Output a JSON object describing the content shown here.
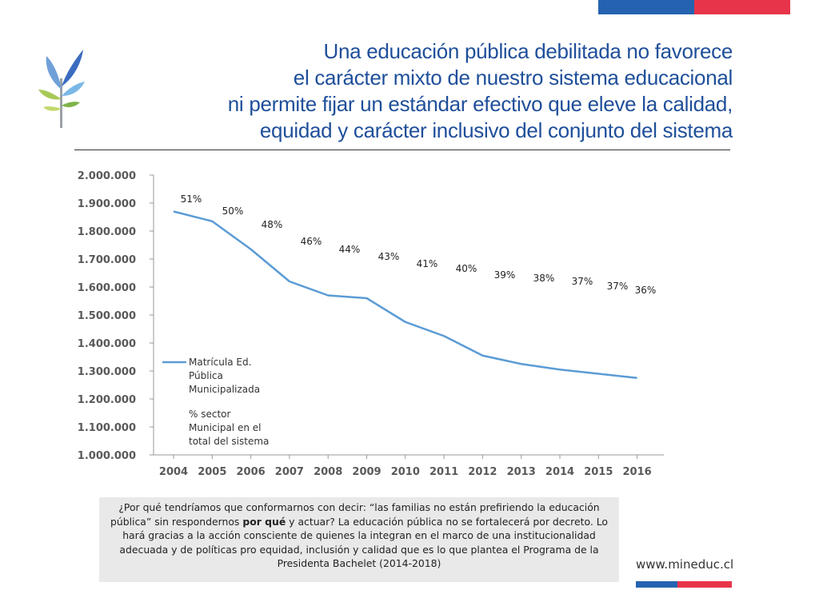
{
  "colors": {
    "blue": "#2563b1",
    "red": "#e8344a",
    "title": "#1f4f9a",
    "line": "#5b9bd5"
  },
  "header": {
    "title_lines": [
      "Una educación pública debilitada no favorece",
      "el carácter mixto de nuestro sistema educacional",
      "ni permite fijar un estándar efectivo que eleve la calidad,",
      "equidad y carácter inclusivo  del conjunto del sistema"
    ]
  },
  "chart_data": {
    "type": "line",
    "x": [
      "2004",
      "2005",
      "2006",
      "2007",
      "2008",
      "2009",
      "2010",
      "2011",
      "2012",
      "2013",
      "2014",
      "2015",
      "2016"
    ],
    "series": [
      {
        "name": "Matrícula Ed. Pública Municipalizada",
        "values": [
          1870000,
          1835000,
          1735000,
          1620000,
          1570000,
          1560000,
          1475000,
          1425000,
          1355000,
          1325000,
          1305000,
          1290000,
          1275000
        ]
      }
    ],
    "annotations": [
      "51%",
      "50%",
      "48%",
      "46%",
      "44%",
      "43%",
      "41%",
      "40%",
      "39%",
      "38%",
      "37%",
      "37%",
      "36%"
    ],
    "annotation_series_name": "% sector Municipal en el total del sistema",
    "ylim": [
      1000000,
      2000000
    ],
    "yticks": [
      "2.000.000",
      "1.900.000",
      "1.800.000",
      "1.700.000",
      "1.600.000",
      "1.500.000",
      "1.400.000",
      "1.300.000",
      "1.200.000",
      "1.100.000",
      "1.000.000"
    ],
    "legend": {
      "line_label": [
        "Matrícula Ed.",
        "Pública",
        "Municipalizada"
      ],
      "pct_label": [
        "% sector",
        "Municipal en el",
        "total del sistema"
      ]
    },
    "grid": false
  },
  "note": {
    "p1": "¿Por qué tendríamos que conformarnos con decir: “las familias no están prefiriendo la educación pública” sin respondernos ",
    "bold": "por qué",
    "p2": " y actuar? La educación pública no se fortalecerá por decreto. Lo hará gracias a la acción consciente de quienes la integran en el marco de una institucionalidad adecuada y de políticas pro equidad, inclusión y calidad que es lo que plantea el Programa de la Presidenta Bachelet (2014-2018)"
  },
  "footer": {
    "url": "www.mineduc.cl"
  }
}
